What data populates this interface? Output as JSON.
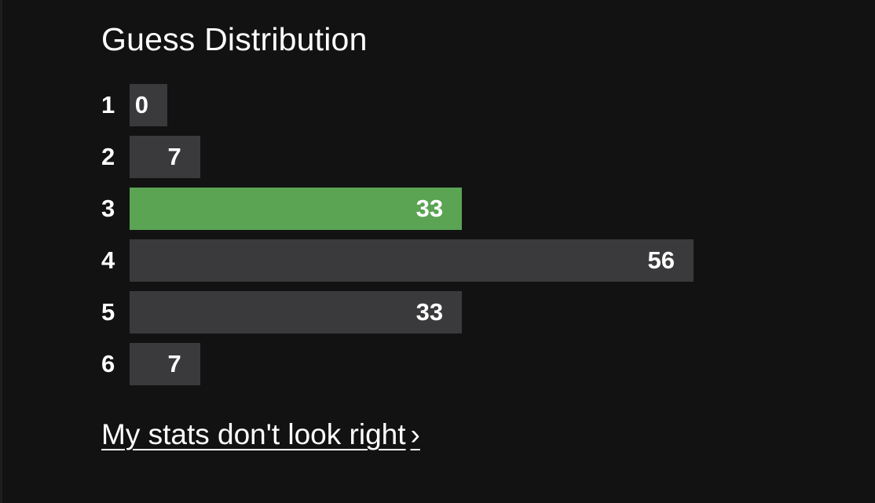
{
  "colors": {
    "background": "#121213",
    "bar": "#3a3a3c",
    "highlight": "#5aa454",
    "text": "#ffffff"
  },
  "chart_data": {
    "type": "bar",
    "orientation": "horizontal",
    "title": "Guess Distribution",
    "categories": [
      "1",
      "2",
      "3",
      "4",
      "5",
      "6"
    ],
    "values": [
      0,
      7,
      33,
      56,
      33,
      7
    ],
    "highlight_index": 2,
    "grid": false
  },
  "footer": {
    "link_label": "My stats don't look right",
    "link_chevron": "›"
  }
}
